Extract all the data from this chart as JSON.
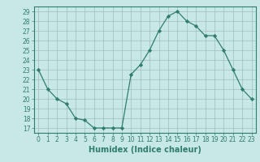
{
  "x": [
    0,
    1,
    2,
    3,
    4,
    5,
    6,
    7,
    8,
    9,
    10,
    11,
    12,
    13,
    14,
    15,
    16,
    17,
    18,
    19,
    20,
    21,
    22,
    23
  ],
  "y": [
    23,
    21,
    20,
    19.5,
    18,
    17.8,
    17,
    17,
    17,
    17,
    22.5,
    23.5,
    25,
    27,
    28.5,
    29,
    28,
    27.5,
    26.5,
    26.5,
    25,
    23,
    21,
    20
  ],
  "line_color": "#2e7d6e",
  "marker": "D",
  "marker_size": 2.2,
  "bg_color": "#c8e8e8",
  "grid_color": "#a0bcbc",
  "xlabel": "Humidex (Indice chaleur)",
  "ylim_min": 16.5,
  "ylim_max": 29.5,
  "xlim_min": -0.5,
  "xlim_max": 23.5,
  "yticks": [
    17,
    18,
    19,
    20,
    21,
    22,
    23,
    24,
    25,
    26,
    27,
    28,
    29
  ],
  "xticks": [
    0,
    1,
    2,
    3,
    4,
    5,
    6,
    7,
    8,
    9,
    10,
    11,
    12,
    13,
    14,
    15,
    16,
    17,
    18,
    19,
    20,
    21,
    22,
    23
  ],
  "tick_label_fontsize": 5.5,
  "xlabel_fontsize": 7,
  "tick_color": "#2e7d6e",
  "label_color": "#2e7d6e",
  "spine_color": "#2e7d6e"
}
